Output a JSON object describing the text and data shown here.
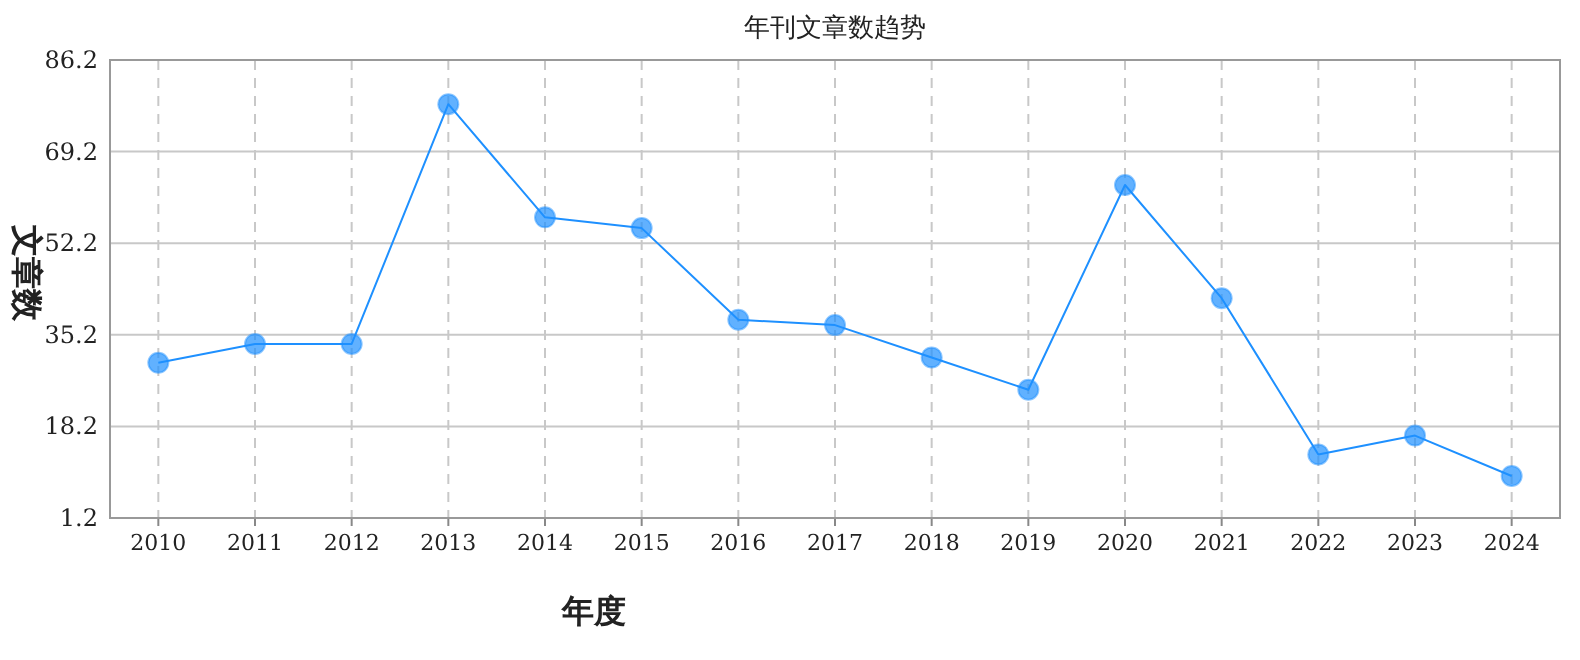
{
  "chart_data": {
    "type": "line",
    "title": "年刊文章数趋势",
    "xlabel": "年度",
    "ylabel": "文章数",
    "categories": [
      "2010",
      "2011",
      "2012",
      "2013",
      "2014",
      "2015",
      "2016",
      "2017",
      "2018",
      "2019",
      "2020",
      "2021",
      "2022",
      "2023",
      "2024"
    ],
    "series": [
      {
        "color": "#1e90ff",
        "values": [
          30,
          33.5,
          33.5,
          78,
          57,
          55,
          38,
          37,
          31,
          25,
          63,
          42,
          13,
          16.5,
          9
        ]
      }
    ],
    "ylim": [
      1.2,
      86.2
    ],
    "yticks": [
      1.2,
      18.2,
      35.2,
      52.2,
      69.2,
      86.2
    ],
    "grid": true,
    "marker": "circle",
    "line_style": "solid"
  }
}
